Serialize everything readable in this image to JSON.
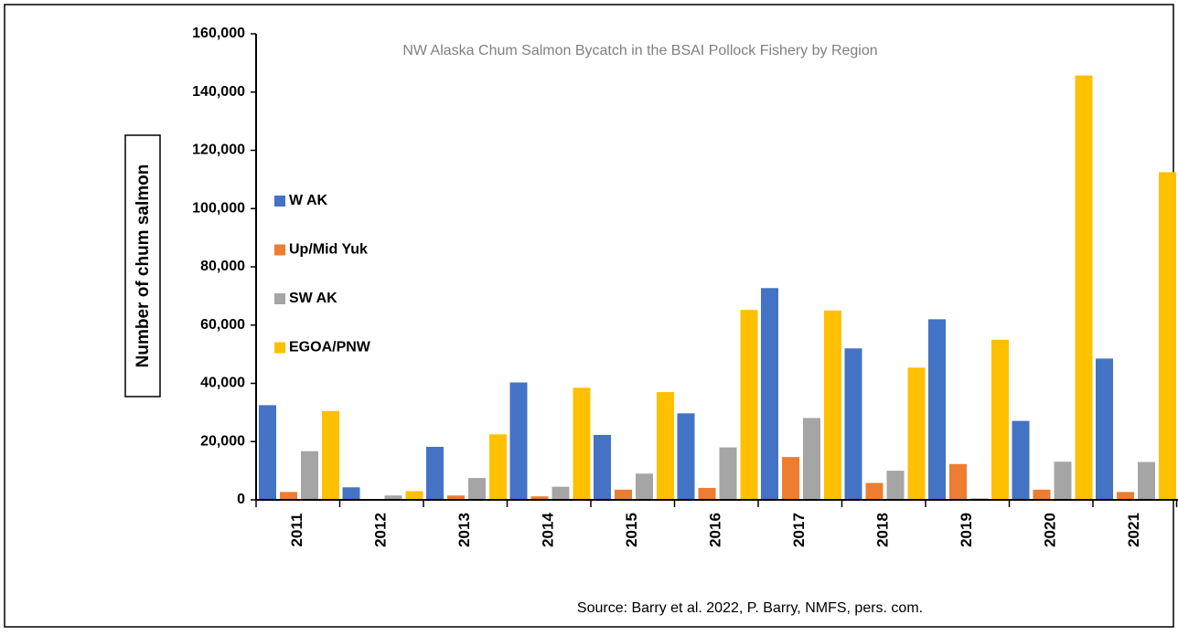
{
  "chart_data": {
    "type": "bar",
    "title": "NW Alaska Chum Salmon Bycatch in the BSAI Pollock Fishery by Region",
    "y_label": "Number of chum salmon",
    "source": "Source: Barry et al. 2022, P. Barry, NMFS, pers. com.",
    "categories": [
      "2011",
      "2012",
      "2013",
      "2014",
      "2015",
      "2016",
      "2017",
      "2018",
      "2019",
      "2020",
      "2021"
    ],
    "series": [
      {
        "name": "W AK",
        "color": "#4472c4",
        "values": [
          32500,
          4300,
          18200,
          40300,
          22300,
          29700,
          72700,
          52000,
          62000,
          27100,
          48500
        ]
      },
      {
        "name": "Up/Mid Yuk",
        "color": "#ed7d31",
        "values": [
          2700,
          0,
          1500,
          1200,
          3500,
          4100,
          14700,
          5800,
          12300,
          3500,
          2700
        ]
      },
      {
        "name": "SW AK",
        "color": "#a5a5a5",
        "values": [
          16700,
          1500,
          7500,
          4500,
          9000,
          18000,
          28100,
          10000,
          500,
          13100,
          13000
        ]
      },
      {
        "name": "EGOA/PNW",
        "color": "#ffc000",
        "values": [
          30500,
          3000,
          22500,
          38500,
          37000,
          65200,
          65000,
          45400,
          55000,
          145700,
          112500
        ]
      }
    ],
    "ylim": [
      0,
      160000
    ],
    "yticks": [
      {
        "value": 0,
        "label": "0"
      },
      {
        "value": 20000,
        "label": "20,000"
      },
      {
        "value": 40000,
        "label": "40,000"
      },
      {
        "value": 60000,
        "label": "60,000"
      },
      {
        "value": 80000,
        "label": "80,000"
      },
      {
        "value": 100000,
        "label": "100,000"
      },
      {
        "value": 120000,
        "label": "120,000"
      },
      {
        "value": 140000,
        "label": "140,000"
      },
      {
        "value": 160000,
        "label": "160,000"
      }
    ],
    "legend": "left"
  }
}
